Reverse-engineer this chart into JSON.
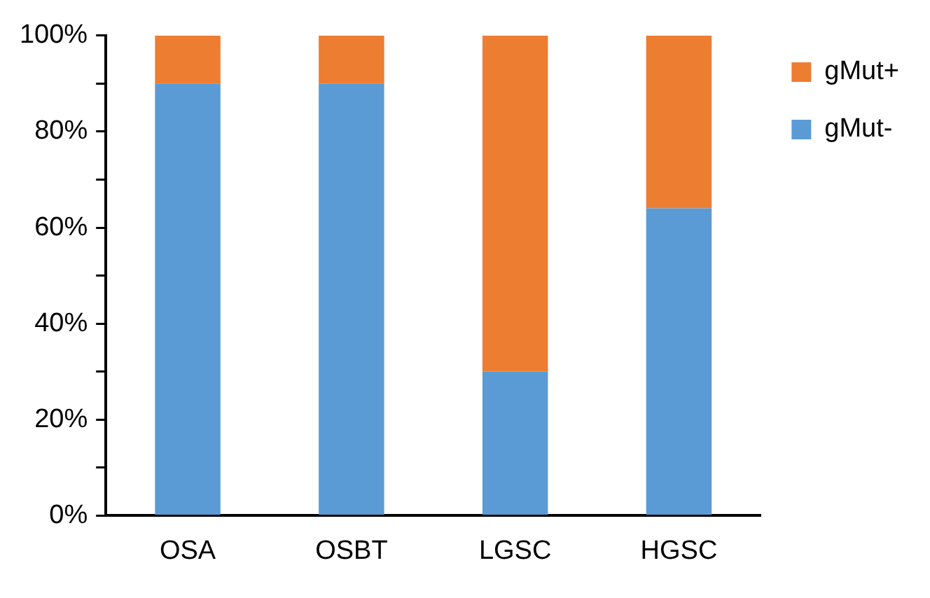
{
  "chart_data": {
    "type": "bar",
    "stacked": true,
    "categories": [
      "OSA",
      "OSBT",
      "LGSC",
      "HGSC"
    ],
    "series": [
      {
        "name": "gMut-",
        "color": "#5b9bd5",
        "values": [
          90,
          90,
          30,
          64
        ]
      },
      {
        "name": "gMut+",
        "color": "#ed7d31",
        "values": [
          10,
          10,
          70,
          36
        ]
      }
    ],
    "ylim": [
      0,
      100
    ],
    "yticks": [
      {
        "value": 0,
        "label": "0%"
      },
      {
        "value": 10,
        "label": null
      },
      {
        "value": 20,
        "label": "20%"
      },
      {
        "value": 30,
        "label": null
      },
      {
        "value": 40,
        "label": "40%"
      },
      {
        "value": 50,
        "label": null
      },
      {
        "value": 60,
        "label": "60%"
      },
      {
        "value": 70,
        "label": null
      },
      {
        "value": 80,
        "label": "80%"
      },
      {
        "value": 90,
        "label": null
      },
      {
        "value": 100,
        "label": "100%"
      }
    ],
    "grid": false,
    "legend": "right"
  }
}
